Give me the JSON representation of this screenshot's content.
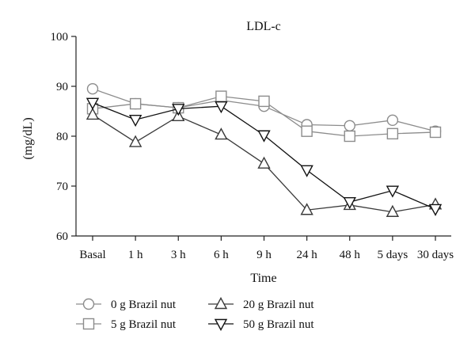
{
  "chart_data": {
    "type": "line",
    "title": "LDL-c",
    "xlabel": "Time",
    "ylabel": "(mg/dL)",
    "categories": [
      "Basal",
      "1 h",
      "3 h",
      "6 h",
      "9 h",
      "24 h",
      "48 h",
      "5 days",
      "30 days"
    ],
    "ylim": [
      60,
      100
    ],
    "yticks": [
      60,
      70,
      80,
      90,
      100
    ],
    "grid": false,
    "legend_position": "bottom",
    "series": [
      {
        "name": "0 g Brazil nut",
        "marker": "circle",
        "color": "#8c8c8c",
        "values": [
          89.5,
          86.5,
          85.7,
          87.2,
          86.0,
          82.3,
          82.1,
          83.2,
          81.0
        ]
      },
      {
        "name": "5 g Brazil nut",
        "marker": "square",
        "color": "#8c8c8c",
        "values": [
          85.5,
          86.5,
          85.7,
          88.0,
          87.0,
          81.0,
          80.0,
          80.5,
          80.8
        ]
      },
      {
        "name": "20 g Brazil nut",
        "marker": "triangle-up",
        "color": "#3a3a3a",
        "values": [
          84.3,
          78.8,
          84.0,
          80.3,
          74.5,
          65.2,
          66.2,
          64.8,
          66.3
        ]
      },
      {
        "name": "50 g Brazil nut",
        "marker": "triangle-down",
        "color": "#111111",
        "values": [
          86.7,
          83.3,
          85.5,
          86.0,
          80.2,
          73.2,
          66.8,
          69.1,
          65.4
        ]
      }
    ]
  }
}
